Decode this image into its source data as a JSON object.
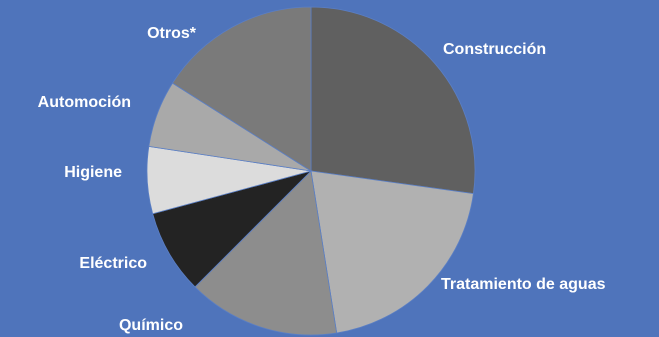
{
  "chart_data": {
    "type": "pie",
    "title": "",
    "start_angle_deg": 0,
    "direction": "clockwise",
    "legend": "none",
    "slices": [
      {
        "label": "Construcción",
        "value": 27.2,
        "color": "#606060"
      },
      {
        "label": "Tratamiento de aguas",
        "value": 20.3,
        "color": "#b1b1b1"
      },
      {
        "label": "Químico",
        "value": 15.0,
        "color": "#8d8d8d"
      },
      {
        "label": "Eléctrico",
        "value": 8.3,
        "color": "#232323"
      },
      {
        "label": "Higiene",
        "value": 6.6,
        "color": "#dcdcdc"
      },
      {
        "label": "Automoción",
        "value": 6.6,
        "color": "#a9a9a9"
      },
      {
        "label": "Otros*",
        "value": 16.0,
        "color": "#7a7a7a"
      }
    ]
  }
}
